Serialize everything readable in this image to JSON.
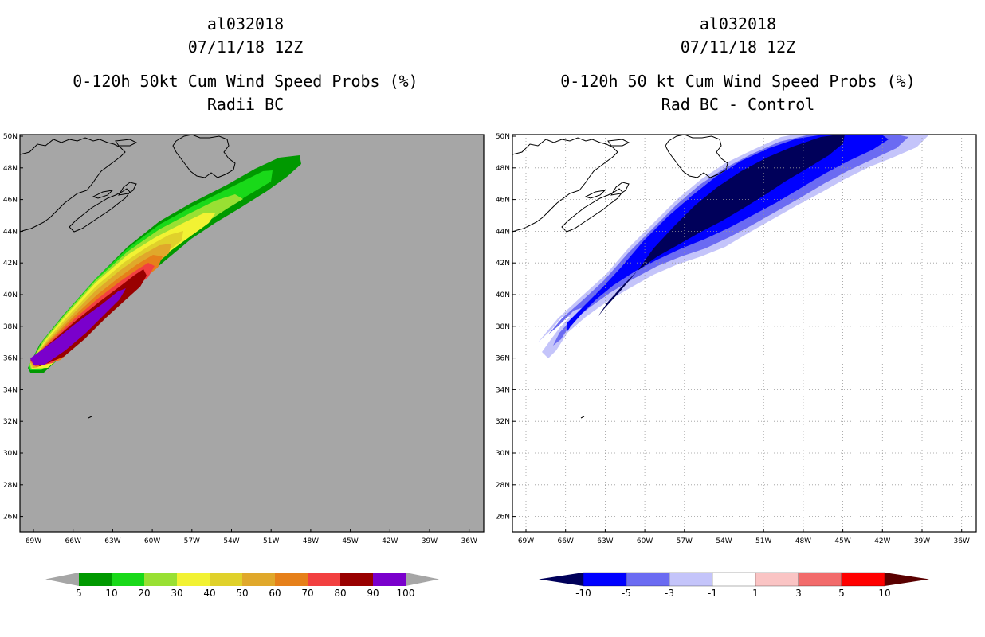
{
  "left_panel": {
    "title_lines": [
      "al032018",
      "07/11/18 12Z",
      "0-120h 50kt Cum Wind Speed Probs (%)",
      "Radii BC"
    ],
    "background_color": "#a6a6a6",
    "lat_labels": [
      "50N",
      "48N",
      "46N",
      "44N",
      "42N",
      "40N",
      "38N",
      "36N",
      "34N",
      "32N",
      "30N",
      "28N",
      "26N"
    ],
    "lon_labels": [
      "69W",
      "66W",
      "63W",
      "60W",
      "57W",
      "54W",
      "51W",
      "48W",
      "45W",
      "42W",
      "39W",
      "36W"
    ],
    "colorbar": {
      "colors": [
        "#009900",
        "#19d919",
        "#99e033",
        "#f2f233",
        "#e0d12b",
        "#e0a82b",
        "#e6801a",
        "#f24040",
        "#990000",
        "#7a00cc"
      ],
      "labels": [
        "5",
        "10",
        "20",
        "30",
        "40",
        "50",
        "60",
        "70",
        "80",
        "90",
        "100"
      ]
    }
  },
  "right_panel": {
    "title_lines": [
      "al032018",
      "07/11/18 12Z",
      "0-120h 50 kt Cum Wind Speed Probs (%)",
      "Rad BC - Control"
    ],
    "background_color": "#ffffff",
    "lat_labels": [
      "50N",
      "48N",
      "46N",
      "44N",
      "42N",
      "40N",
      "38N",
      "36N",
      "34N",
      "32N",
      "30N",
      "28N",
      "26N"
    ],
    "lon_labels": [
      "69W",
      "66W",
      "63W",
      "60W",
      "57W",
      "54W",
      "51W",
      "48W",
      "45W",
      "42W",
      "39W",
      "36W"
    ],
    "colorbar": {
      "colors": [
        "#00005a",
        "#0000ff",
        "#6b6bf2",
        "#c4c4fa",
        "#ffffff",
        "#fac4c4",
        "#f26b6b",
        "#ff0000",
        "#5a0000"
      ],
      "labels": [
        "-10",
        "-5",
        "-3",
        "-1",
        "1",
        "3",
        "5",
        "10"
      ]
    }
  }
}
